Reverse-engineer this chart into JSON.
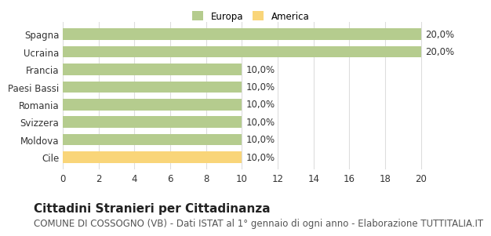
{
  "categories": [
    "Spagna",
    "Ucraina",
    "Francia",
    "Paesi Bassi",
    "Romania",
    "Svizzera",
    "Moldova",
    "Cile"
  ],
  "values": [
    20,
    20,
    10,
    10,
    10,
    10,
    10,
    10
  ],
  "colors": [
    "#b5cc8e",
    "#b5cc8e",
    "#b5cc8e",
    "#b5cc8e",
    "#b5cc8e",
    "#b5cc8e",
    "#b5cc8e",
    "#f9d579"
  ],
  "bar_labels": [
    "20,0%",
    "20,0%",
    "10,0%",
    "10,0%",
    "10,0%",
    "10,0%",
    "10,0%",
    "10,0%"
  ],
  "legend_items": [
    {
      "label": "Europa",
      "color": "#b5cc8e"
    },
    {
      "label": "America",
      "color": "#f9d579"
    }
  ],
  "xlim": [
    0,
    21
  ],
  "xticks": [
    0,
    2,
    4,
    6,
    8,
    10,
    12,
    14,
    16,
    18,
    20
  ],
  "title": "Cittadini Stranieri per Cittadinanza",
  "subtitle": "COMUNE DI COSSOGNO (VB) - Dati ISTAT al 1° gennaio di ogni anno - Elaborazione TUTTITALIA.IT",
  "background_color": "#ffffff",
  "grid_color": "#dddddd",
  "title_fontsize": 11,
  "subtitle_fontsize": 8.5,
  "label_fontsize": 8.5,
  "tick_fontsize": 8.5
}
